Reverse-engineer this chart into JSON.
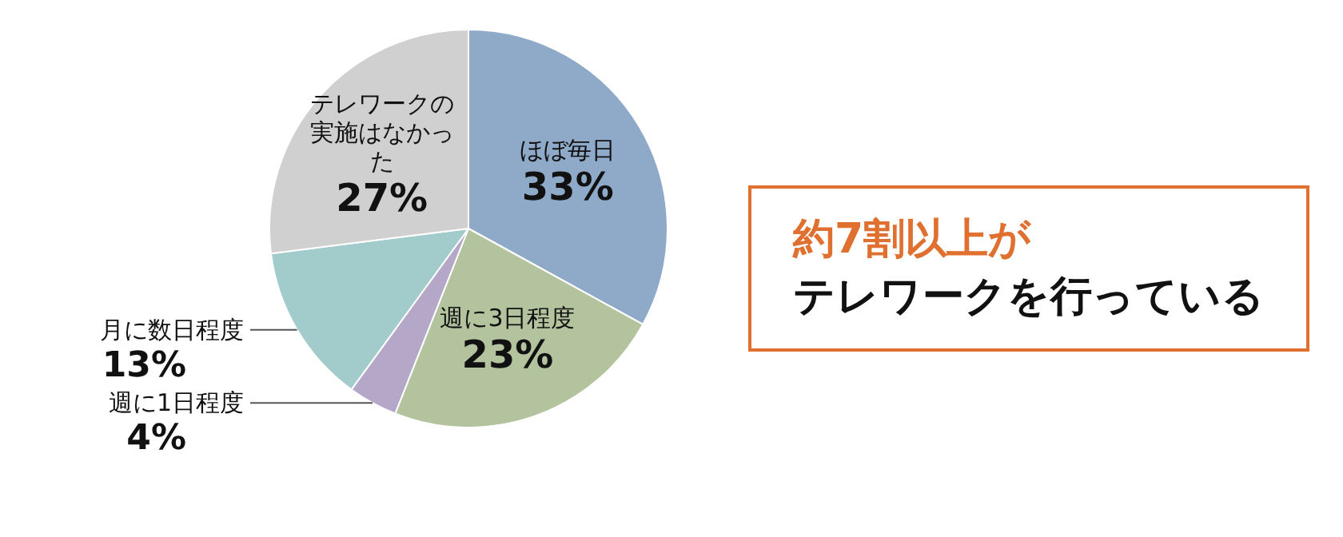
{
  "chart_data": {
    "type": "pie",
    "categories": [
      "ほぼ毎日",
      "週に3日程度",
      "週に1日程度",
      "月に数日程度",
      "テレワークの実施はなかった"
    ],
    "values": [
      33,
      23,
      4,
      13,
      27
    ],
    "value_labels": [
      "33%",
      "23%",
      "4%",
      "13%",
      "27%"
    ],
    "colors": [
      "#8fa9c8",
      "#b3c39e",
      "#b4a7c7",
      "#a2cbcb",
      "#d0d0d0"
    ],
    "annotations": [
      "約7割以上が",
      "テレワークを行っている"
    ],
    "legend": false
  }
}
